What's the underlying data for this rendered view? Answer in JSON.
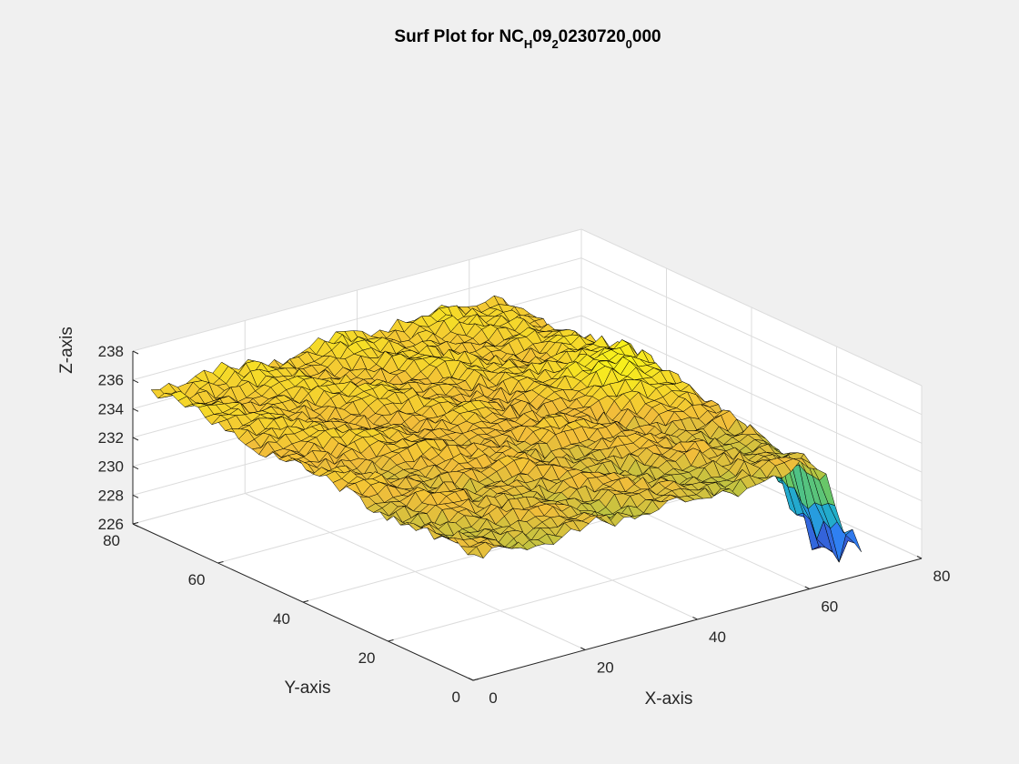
{
  "chart_data": {
    "type": "surface",
    "title": {
      "parts": [
        {
          "text": "Surf Plot for NC",
          "sub": false
        },
        {
          "text": "H",
          "sub": true
        },
        {
          "text": "09",
          "sub": false
        },
        {
          "text": "2",
          "sub": true
        },
        {
          "text": "0230720",
          "sub": false
        },
        {
          "text": "0",
          "sub": true
        },
        {
          "text": "000",
          "sub": false
        }
      ]
    },
    "xlabel": "X-axis",
    "ylabel": "Y-axis",
    "zlabel": "Z-axis",
    "xlim": [
      0,
      80
    ],
    "ylim": [
      0,
      80
    ],
    "zlim": [
      226,
      238
    ],
    "xticks": [
      "0",
      "20",
      "40",
      "60",
      "80"
    ],
    "yticks": [
      "0",
      "20",
      "40",
      "60",
      "80"
    ],
    "zticks": [
      "226",
      "228",
      "230",
      "232",
      "234",
      "236",
      "238"
    ],
    "data_extent": {
      "x": [
        1,
        70
      ],
      "y": [
        1,
        77
      ]
    },
    "grid": true,
    "colormap": "parula",
    "edge_color": "#000000",
    "colormap_stops": [
      "#3e26a8",
      "#2e87f7",
      "#1fb8bd",
      "#84cc49",
      "#f2bd3a",
      "#f9fb15"
    ],
    "description_points": {
      "plateau_level": 234.5,
      "low_y_plateau_level": 234.2,
      "high_y_plateau_level": 235.6,
      "bump_peak": 236.8,
      "trench_min": 226.4
    }
  }
}
